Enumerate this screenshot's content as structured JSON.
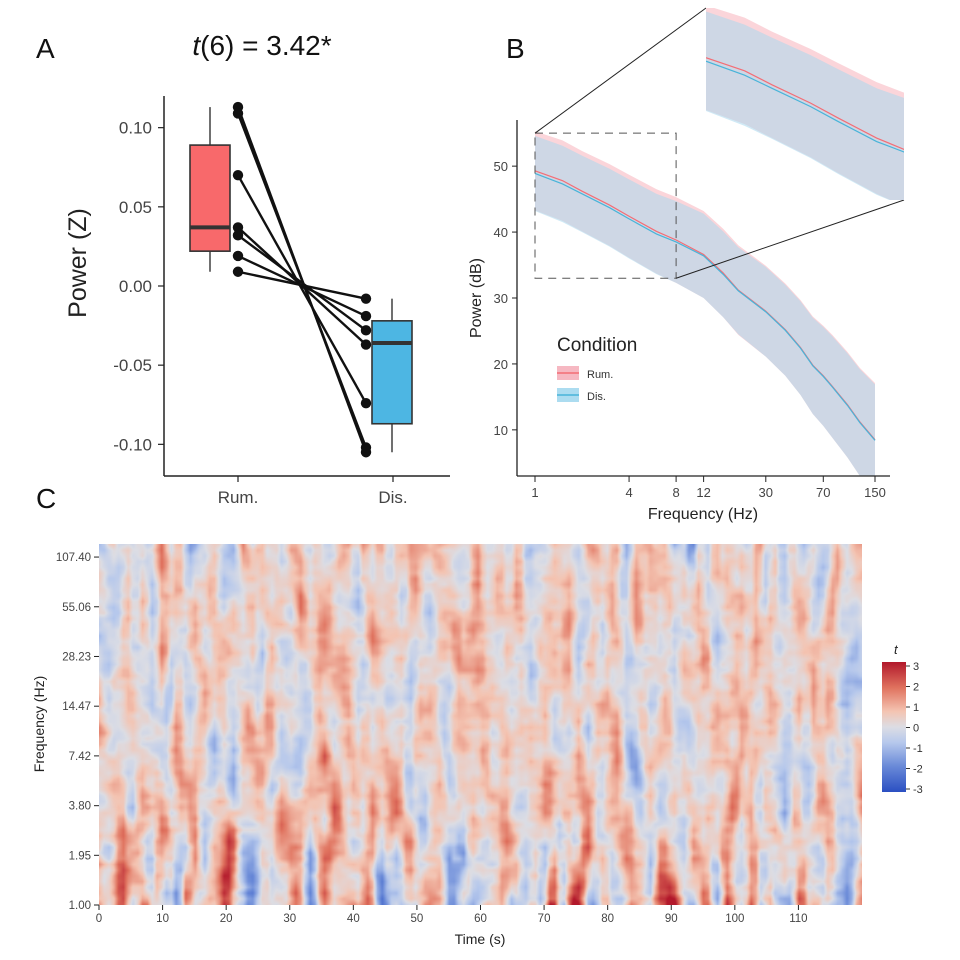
{
  "panels": {
    "a": "A",
    "b": "B",
    "c": "C"
  },
  "chart_data": [
    {
      "type": "box-paired",
      "panel": "A",
      "title_italic": "t",
      "title_rest": "(6) = 3.42*",
      "ylabel": "Power (Z)",
      "ylim": [
        -0.12,
        0.12
      ],
      "yticks": [
        -0.1,
        -0.05,
        0.0,
        0.05,
        0.1
      ],
      "ytick_labels": [
        "-0.10",
        "-0.05",
        "0.00",
        "0.05",
        "0.10"
      ],
      "categories": [
        "Rum.",
        "Dis."
      ],
      "box_colors": [
        "#f8696b",
        "#4db6e3"
      ],
      "boxes": [
        {
          "name": "Rum.",
          "min": 0.009,
          "q1": 0.022,
          "median": 0.037,
          "q3": 0.089,
          "max": 0.113
        },
        {
          "name": "Dis.",
          "min": -0.105,
          "q1": -0.087,
          "median": -0.036,
          "q3": -0.022,
          "max": -0.008
        }
      ],
      "pairs": [
        {
          "rum": 0.113,
          "dis": -0.105
        },
        {
          "rum": 0.109,
          "dis": -0.102
        },
        {
          "rum": 0.07,
          "dis": -0.074
        },
        {
          "rum": 0.037,
          "dis": -0.037
        },
        {
          "rum": 0.032,
          "dis": -0.028
        },
        {
          "rum": 0.019,
          "dis": -0.019
        },
        {
          "rum": 0.009,
          "dis": -0.008
        }
      ]
    },
    {
      "type": "line",
      "panel": "B",
      "xlabel": "Frequency (Hz)",
      "ylabel": "Power (dB)",
      "xscale": "log",
      "xlim": [
        1,
        170
      ],
      "ylim": [
        3,
        57
      ],
      "xticks": [
        1,
        4,
        8,
        12,
        30,
        70,
        150
      ],
      "yticks": [
        10,
        20,
        30,
        40,
        50
      ],
      "legend_title": "Condition",
      "inset_range": {
        "x": [
          1,
          8
        ],
        "y": [
          33,
          55
        ]
      },
      "series": [
        {
          "name": "Rum.",
          "color": "#f46d75",
          "band_color": "#f7b3bc",
          "x": [
            1,
            1.5,
            2,
            3,
            4,
            6,
            8,
            12,
            16,
            20,
            30,
            40,
            50,
            60,
            70,
            80,
            100,
            120,
            150
          ],
          "y": [
            49.3,
            47.8,
            46.2,
            44.1,
            42.4,
            40.1,
            38.8,
            36.6,
            33.8,
            31.2,
            28.0,
            25.2,
            22.5,
            19.8,
            18.2,
            16.6,
            13.8,
            11.2,
            8.5
          ],
          "sd": [
            6.0,
            6.1,
            6.1,
            6.2,
            6.3,
            6.4,
            6.5,
            6.6,
            6.7,
            6.8,
            6.9,
            7.0,
            7.2,
            7.4,
            7.6,
            7.8,
            8.0,
            8.2,
            8.6
          ]
        },
        {
          "name": "Dis.",
          "color": "#48b4d9",
          "band_color": "#a9d9ee",
          "x": [
            1,
            1.5,
            2,
            3,
            4,
            6,
            8,
            12,
            16,
            20,
            30,
            40,
            50,
            60,
            70,
            80,
            100,
            120,
            150
          ],
          "y": [
            48.9,
            47.3,
            45.8,
            43.7,
            42.0,
            39.7,
            38.5,
            36.4,
            33.6,
            31.1,
            27.9,
            25.1,
            22.4,
            19.7,
            18.1,
            16.5,
            13.7,
            11.1,
            8.4
          ],
          "sd": [
            5.7,
            5.8,
            5.8,
            5.9,
            6.0,
            6.1,
            6.2,
            6.4,
            6.5,
            6.6,
            6.8,
            6.9,
            7.1,
            7.3,
            7.5,
            7.7,
            7.9,
            8.1,
            8.5
          ]
        }
      ]
    },
    {
      "type": "heatmap",
      "panel": "C",
      "xlabel": "Time (s)",
      "ylabel": "Frequency (Hz)",
      "xlim": [
        0,
        120
      ],
      "xticks": [
        0,
        10,
        20,
        30,
        40,
        50,
        60,
        70,
        80,
        90,
        100,
        110
      ],
      "yticks": [
        1.0,
        1.95,
        3.8,
        7.42,
        14.47,
        28.23,
        55.06,
        107.4
      ],
      "ytick_labels": [
        "1.00",
        "1.95",
        "3.80",
        "7.42",
        "14.47",
        "28.23",
        "55.06",
        "107.40"
      ],
      "ylim_log2": [
        0,
        7.0
      ],
      "colorbar_title": "t",
      "colorbar_range": [
        -3,
        3
      ],
      "colorbar_ticks": [
        3,
        2,
        1,
        0,
        -1,
        -2,
        -3
      ],
      "colorbar_colors": [
        "#c0282e",
        "#e0735f",
        "#f0b09b",
        "#d7d9e2",
        "#a6bde6",
        "#6a8ad8",
        "#3557c6"
      ],
      "pattern_note": "noisy t-values, mostly within -3..3"
    }
  ]
}
